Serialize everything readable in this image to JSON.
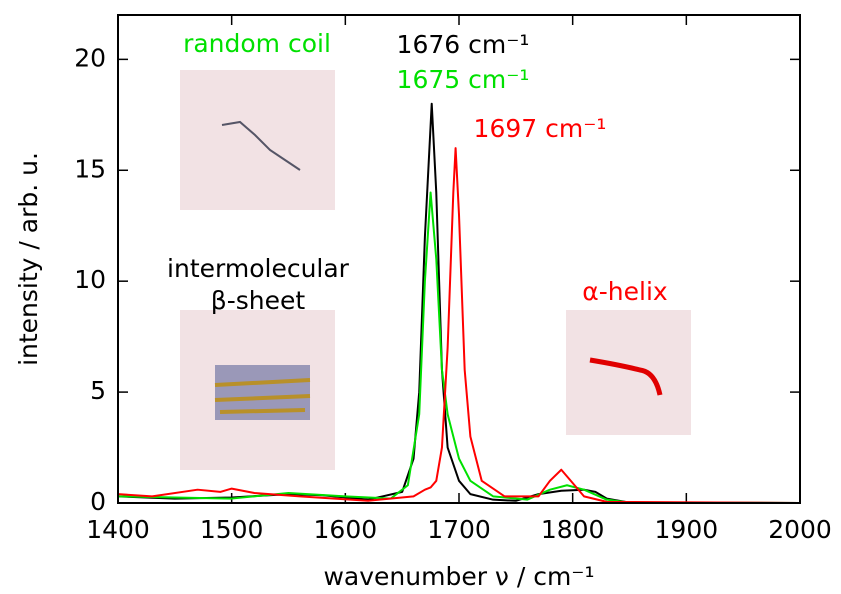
{
  "chart_data": {
    "type": "line",
    "x_label": "wavenumber ν / cm⁻¹",
    "y_label": "intensity / arb. u.",
    "xlim": [
      1400,
      2000
    ],
    "xticks": [
      1400,
      1500,
      1600,
      1700,
      1800,
      1900,
      2000
    ],
    "ylim": [
      0,
      22
    ],
    "yticks": [
      0,
      5,
      10,
      15,
      20
    ],
    "series": [
      {
        "color": "#000000",
        "x": [
          1400,
          1450,
          1500,
          1550,
          1580,
          1620,
          1650,
          1660,
          1665,
          1670,
          1676,
          1680,
          1685,
          1690,
          1700,
          1710,
          1730,
          1750,
          1770,
          1790,
          1810,
          1820,
          1830,
          1850,
          2000
        ],
        "values": [
          0.3,
          0.2,
          0.25,
          0.4,
          0.35,
          0.15,
          0.5,
          2,
          5,
          12,
          18,
          14,
          6,
          2.5,
          1,
          0.4,
          0.15,
          0.1,
          0.4,
          0.55,
          0.6,
          0.5,
          0.2,
          0.02,
          0
        ]
      },
      {
        "color": "#00e000",
        "x": [
          1400,
          1450,
          1500,
          1550,
          1600,
          1640,
          1655,
          1665,
          1670,
          1675,
          1680,
          1685,
          1690,
          1695,
          1700,
          1710,
          1730,
          1760,
          1780,
          1795,
          1810,
          1830,
          1850,
          2000
        ],
        "values": [
          0.3,
          0.25,
          0.2,
          0.45,
          0.3,
          0.2,
          0.8,
          4,
          10,
          14,
          11,
          6,
          4,
          3,
          2,
          1,
          0.3,
          0.15,
          0.6,
          0.8,
          0.6,
          0.15,
          0.02,
          0
        ]
      },
      {
        "color": "#ff0000",
        "x": [
          1400,
          1430,
          1470,
          1490,
          1500,
          1520,
          1560,
          1620,
          1660,
          1670,
          1675,
          1680,
          1685,
          1690,
          1695,
          1697,
          1700,
          1705,
          1710,
          1720,
          1740,
          1770,
          1780,
          1790,
          1800,
          1810,
          1830,
          2000
        ],
        "values": [
          0.4,
          0.3,
          0.6,
          0.5,
          0.65,
          0.45,
          0.3,
          0.1,
          0.3,
          0.6,
          0.7,
          1,
          2.5,
          7,
          14,
          16,
          13,
          6,
          3,
          1,
          0.3,
          0.3,
          1,
          1.5,
          0.9,
          0.3,
          0.05,
          0
        ]
      }
    ],
    "annotations": [
      {
        "text": "random coil",
        "color": "#00e000"
      },
      {
        "text": "1676 cm⁻¹",
        "color": "#000000"
      },
      {
        "text": "1675 cm⁻¹",
        "color": "#00e000"
      },
      {
        "text": "1697 cm⁻¹",
        "color": "#ff0000"
      },
      {
        "text": "intermolecular",
        "color": "#000000"
      },
      {
        "text": "β-sheet",
        "color": "#000000"
      },
      {
        "text": "α-helix",
        "color": "#ff0000"
      }
    ]
  }
}
